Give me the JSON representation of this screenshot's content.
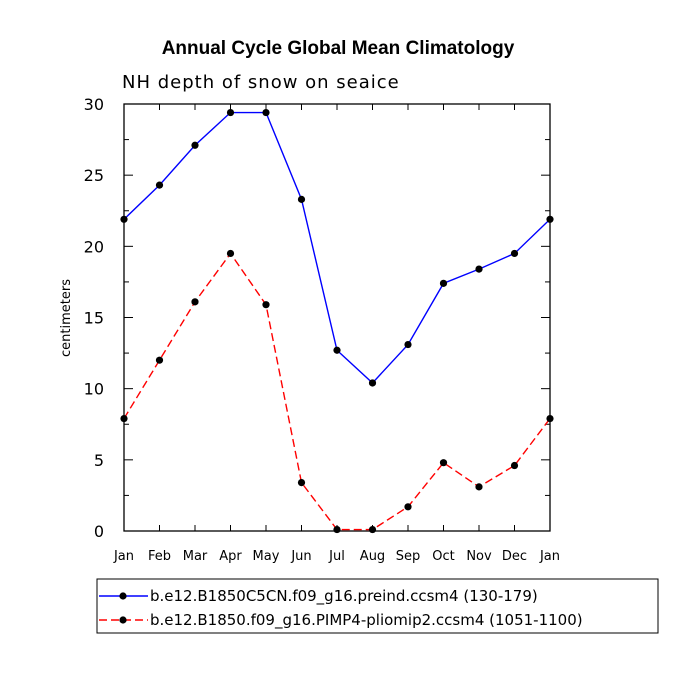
{
  "chart_data": {
    "type": "line",
    "title": "Annual Cycle Global Mean Climatology",
    "subtitle": "NH depth of snow on seaice",
    "xlabel": "",
    "ylabel": "centimeters",
    "ylim": [
      0,
      30
    ],
    "yticks": [
      "0",
      "5",
      "10",
      "15",
      "20",
      "25",
      "30"
    ],
    "categories": [
      "Jan",
      "Feb",
      "Mar",
      "Apr",
      "May",
      "Jun",
      "Jul",
      "Aug",
      "Sep",
      "Oct",
      "Nov",
      "Dec",
      "Jan"
    ],
    "series": [
      {
        "name": "b.e12.B1850C5CN.f09_g16.preind.ccsm4 (130-179)",
        "color": "#0000ff",
        "dash": "solid",
        "values": [
          21.9,
          24.3,
          27.1,
          29.4,
          29.4,
          23.3,
          12.7,
          10.4,
          13.1,
          17.4,
          18.4,
          19.5,
          21.9
        ]
      },
      {
        "name": "b.e12.B1850.f09_g16.PIMP4-pliomip2.ccsm4 (1051-1100)",
        "color": "#ff0000",
        "dash": "dashed",
        "values": [
          7.9,
          12.0,
          16.1,
          19.5,
          15.9,
          3.4,
          0.1,
          0.1,
          1.7,
          4.8,
          3.1,
          4.6,
          7.9
        ]
      }
    ],
    "legend_position": "bottom"
  }
}
